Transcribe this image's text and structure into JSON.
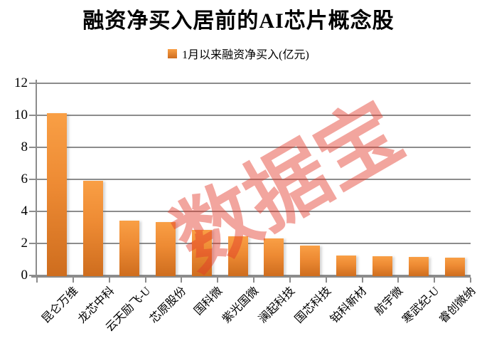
{
  "title": "融资净买入居前的AI芯片概念股",
  "legend": {
    "label": "1月以来融资净买入(亿元)"
  },
  "watermark": {
    "text": "数据宝",
    "color": "rgba(226,56,40,0.45)"
  },
  "colors": {
    "bar_top": "#F99F45",
    "bar_bottom": "#CE6D1E",
    "axis_gray": "#8C8C8C",
    "title_text": "#000000",
    "watermark_red": "#E23828"
  },
  "chart_data": {
    "type": "bar",
    "title": "融资净买入居前的AI芯片概念股",
    "categories": [
      "昆仑万维",
      "龙芯中科",
      "云天励飞-U",
      "芯原股份",
      "国科微",
      "紫光国微",
      "澜起科技",
      "国芯科技",
      "铂科新材",
      "航宇微",
      "寒武纪-U",
      "睿创微纳"
    ],
    "series": [
      {
        "name": "1月以来融资净买入(亿元)",
        "values": [
          10.2,
          5.95,
          3.45,
          3.4,
          2.9,
          2.5,
          2.35,
          1.9,
          1.3,
          1.25,
          1.2,
          1.15
        ]
      }
    ],
    "xlabel": "",
    "ylabel": "",
    "ylim": [
      0,
      12
    ],
    "yticks": [
      0,
      2,
      4,
      6,
      8,
      10,
      12
    ],
    "grid": true,
    "gridline_interval": 2,
    "legend_position": "top-center",
    "x_tick_label_rotation_deg": 45
  }
}
